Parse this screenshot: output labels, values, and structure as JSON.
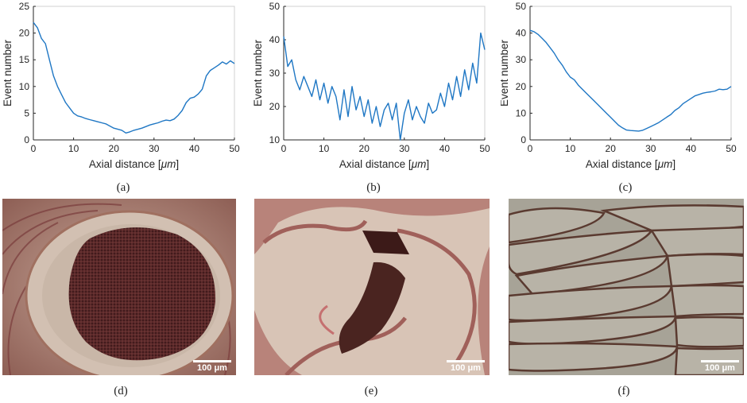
{
  "chart_data": [
    {
      "type": "line",
      "panel": "(a)",
      "xlabel": "Axial distance [",
      "xlabel_unit": "μm",
      "xlabel_close": "]",
      "ylabel": "Event number",
      "xlim": [
        0,
        50
      ],
      "ylim": [
        0,
        25
      ],
      "xticks": [
        "0",
        "10",
        "20",
        "30",
        "40",
        "50"
      ],
      "yticks": [
        "0",
        "5",
        "10",
        "15",
        "20",
        "25"
      ],
      "color": "#1f77c4",
      "x": [
        0,
        1,
        2,
        3,
        4,
        5,
        6,
        7,
        8,
        9,
        10,
        11,
        12,
        13,
        14,
        15,
        16,
        17,
        18,
        19,
        20,
        21,
        22,
        23,
        24,
        25,
        26,
        27,
        28,
        29,
        30,
        31,
        32,
        33,
        34,
        35,
        36,
        37,
        38,
        39,
        40,
        41,
        42,
        43,
        44,
        45,
        46,
        47,
        48,
        49,
        50
      ],
      "y": [
        22,
        21,
        19,
        18,
        15,
        12,
        10,
        8.5,
        7,
        6,
        5,
        4.5,
        4.3,
        4,
        3.8,
        3.6,
        3.4,
        3.2,
        3,
        2.6,
        2.2,
        2,
        1.8,
        1.3,
        1.5,
        1.8,
        2,
        2.2,
        2.5,
        2.8,
        3,
        3.2,
        3.5,
        3.7,
        3.6,
        3.9,
        4.6,
        5.5,
        7,
        7.8,
        8,
        8.6,
        9.5,
        12,
        13,
        13.5,
        14,
        14.6,
        14.2,
        14.8,
        14.3
      ]
    },
    {
      "type": "line",
      "panel": "(b)",
      "xlabel": "Axial distance [",
      "xlabel_unit": "μm",
      "xlabel_close": "]",
      "ylabel": "Event number",
      "xlim": [
        0,
        50
      ],
      "ylim": [
        10,
        50
      ],
      "xticks": [
        "0",
        "10",
        "20",
        "30",
        "40",
        "50"
      ],
      "yticks": [
        "10",
        "20",
        "30",
        "40",
        "50"
      ],
      "color": "#1f77c4",
      "x": [
        0,
        1,
        2,
        3,
        4,
        5,
        6,
        7,
        8,
        9,
        10,
        11,
        12,
        13,
        14,
        15,
        16,
        17,
        18,
        19,
        20,
        21,
        22,
        23,
        24,
        25,
        26,
        27,
        28,
        29,
        30,
        31,
        32,
        33,
        34,
        35,
        36,
        37,
        38,
        39,
        40,
        41,
        42,
        43,
        44,
        45,
        46,
        47,
        48,
        49,
        50
      ],
      "y": [
        41,
        32,
        34,
        28,
        25,
        29,
        26,
        23,
        28,
        22,
        27,
        21,
        26,
        23,
        16,
        25,
        17,
        26,
        19,
        23,
        17,
        22,
        15,
        20,
        14,
        19,
        21,
        16,
        21,
        10,
        18,
        22,
        16,
        20,
        17,
        15,
        21,
        18,
        19,
        24,
        20,
        27,
        22,
        29,
        23,
        31,
        25,
        33,
        27,
        42,
        37
      ]
    },
    {
      "type": "line",
      "panel": "(c)",
      "xlabel": "Axial distance [",
      "xlabel_unit": "μm",
      "xlabel_close": "]",
      "ylabel": "Event number",
      "xlim": [
        0,
        50
      ],
      "ylim": [
        0,
        50
      ],
      "xticks": [
        "0",
        "10",
        "20",
        "30",
        "40",
        "50"
      ],
      "yticks": [
        "0",
        "10",
        "20",
        "30",
        "40",
        "50"
      ],
      "color": "#1f77c4",
      "x": [
        0,
        1,
        2,
        3,
        4,
        5,
        6,
        7,
        8,
        9,
        10,
        11,
        12,
        13,
        14,
        15,
        16,
        17,
        18,
        19,
        20,
        21,
        22,
        23,
        24,
        25,
        26,
        27,
        28,
        29,
        30,
        31,
        32,
        33,
        34,
        35,
        36,
        37,
        38,
        39,
        40,
        41,
        42,
        43,
        44,
        45,
        46,
        47,
        48,
        49,
        50
      ],
      "y": [
        41,
        40.5,
        39.5,
        38,
        36.5,
        34.5,
        32.5,
        30,
        28,
        25.5,
        23.5,
        22.5,
        20.5,
        19,
        17.5,
        16,
        14.5,
        13,
        11.5,
        10,
        8.5,
        7,
        5.5,
        4.5,
        3.7,
        3.5,
        3.4,
        3.3,
        3.6,
        4.3,
        5,
        5.7,
        6.5,
        7.5,
        8.5,
        9.5,
        11,
        12,
        13.5,
        14.5,
        15.5,
        16.5,
        17,
        17.5,
        17.8,
        18,
        18.3,
        19,
        18.8,
        19,
        20
      ]
    }
  ],
  "images": [
    {
      "panel": "(d)",
      "scalebar": "100 μm"
    },
    {
      "panel": "(e)",
      "scalebar": "100 μm"
    },
    {
      "panel": "(f)",
      "scalebar": "100 μm"
    }
  ],
  "captions": [
    "(a)",
    "(b)",
    "(c)",
    "(d)",
    "(e)",
    "(f)"
  ]
}
